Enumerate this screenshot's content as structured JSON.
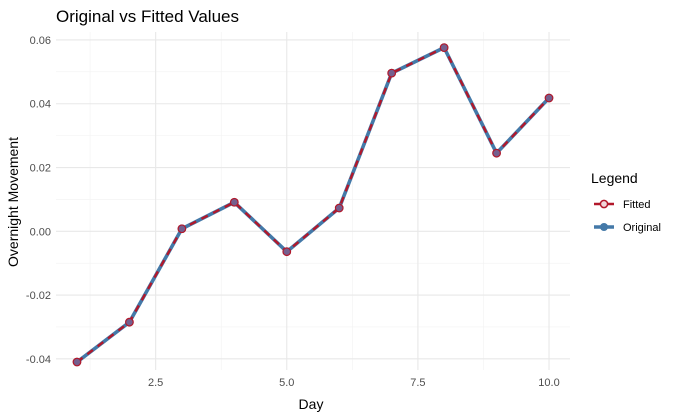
{
  "chart_data": {
    "type": "line",
    "title": "Original vs Fitted Values",
    "xlabel": "Day",
    "ylabel": "Overnight Movement",
    "x": [
      1,
      2,
      3,
      4,
      5,
      6,
      7,
      8,
      9,
      10
    ],
    "xlim": [
      0.6,
      10.4
    ],
    "ylim": [
      -0.0435,
      0.0625
    ],
    "x_ticks": [
      2.5,
      5.0,
      7.5,
      10.0
    ],
    "x_tick_labels": [
      "2.5",
      "5.0",
      "7.5",
      "10.0"
    ],
    "y_ticks": [
      -0.04,
      -0.02,
      0.0,
      0.02,
      0.04,
      0.06
    ],
    "y_tick_labels": [
      "-0.04",
      "-0.02",
      "0.00",
      "0.02",
      "0.04",
      "0.06"
    ],
    "grid": true,
    "legend": {
      "title": "Legend",
      "position": "right"
    },
    "series": [
      {
        "name": "Original",
        "color": "#4479a8",
        "style": "solid",
        "marker": "filled-circle",
        "values": [
          -0.041,
          -0.0285,
          0.0008,
          0.0091,
          -0.0064,
          0.0073,
          0.0496,
          0.0576,
          0.0245,
          0.0418
        ]
      },
      {
        "name": "Fitted",
        "color": "#b2182b",
        "style": "dashed",
        "marker": "open-circle",
        "values": [
          -0.041,
          -0.0285,
          0.0008,
          0.0091,
          -0.0064,
          0.0073,
          0.0496,
          0.0576,
          0.0245,
          0.0418
        ]
      }
    ]
  }
}
